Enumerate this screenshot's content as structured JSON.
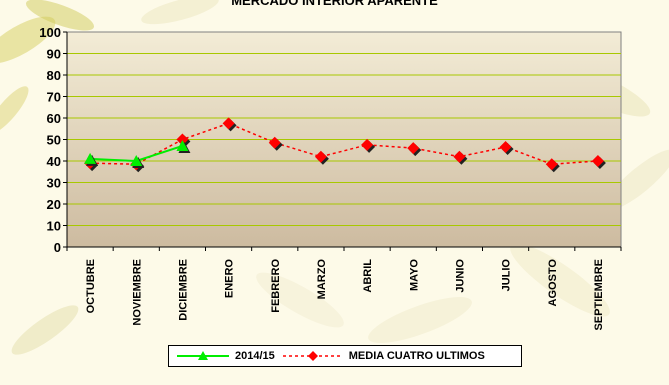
{
  "chart_data": {
    "type": "line",
    "title": "MERCADO INTERIOR APARENTE",
    "categories": [
      "OCTUBRE",
      "NOVIEMBRE",
      "DICIEMBRE",
      "ENERO",
      "FEBRERO",
      "MARZO",
      "ABRIL",
      "MAYO",
      "JUNIO",
      "JULIO",
      "AGOSTO",
      "SEPTIEMBRE"
    ],
    "ylim": [
      0,
      100
    ],
    "yticks": [
      0,
      10,
      20,
      30,
      40,
      50,
      60,
      70,
      80,
      90,
      100
    ],
    "grid": true,
    "legend_position": "bottom",
    "series": [
      {
        "name": "2014/15",
        "values": [
          41,
          40,
          47,
          null,
          null,
          null,
          null,
          null,
          null,
          null,
          null,
          null
        ],
        "color": "#00ee00",
        "marker": "triangle",
        "line": "solid"
      },
      {
        "name": "MEDIA CUATRO ULTIMOS",
        "values": [
          39,
          38.5,
          50,
          57.5,
          48.5,
          42,
          47.5,
          46,
          42,
          46.5,
          38.5,
          40
        ],
        "color": "#ff0000",
        "marker": "diamond",
        "line": "dotted"
      }
    ]
  },
  "colors": {
    "plot_bg_light": "#f3ecd6",
    "plot_bg_dark": "#cdbba0",
    "gridline": "#a8c800"
  }
}
